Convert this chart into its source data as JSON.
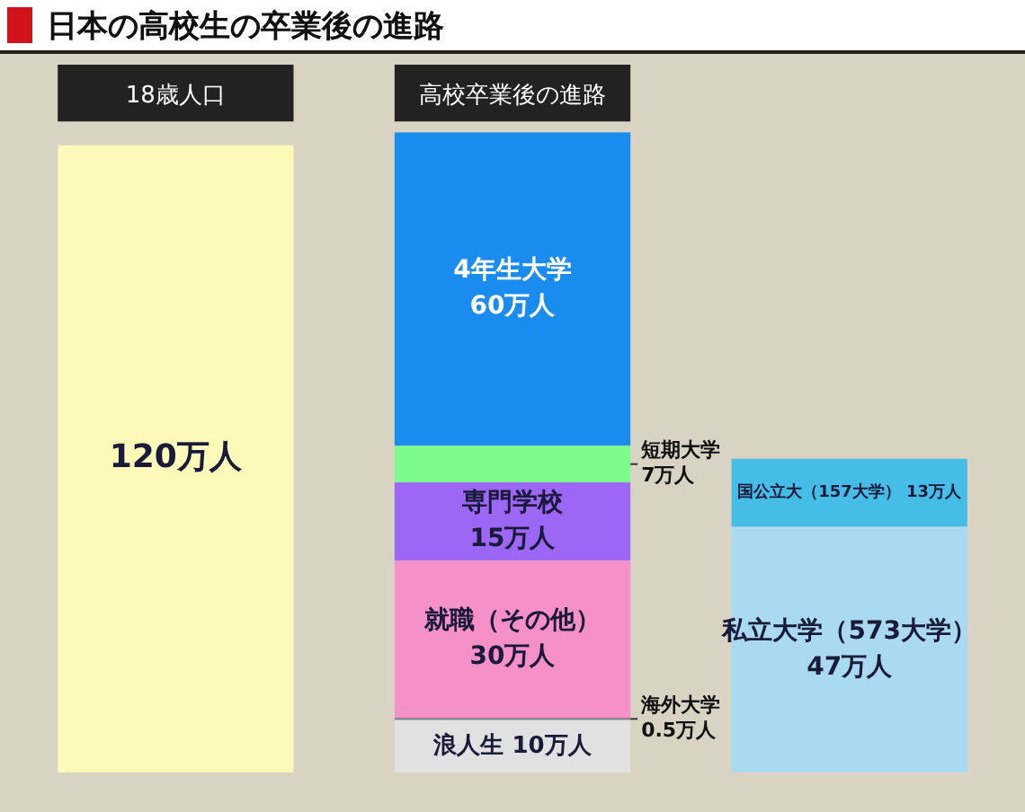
{
  "chart_data": {
    "type": "bar",
    "title": "日本の高校生の卒業後の進路",
    "categories": [
      "18歳人口",
      "高校卒業後の進路",
      null
    ],
    "stacked": true,
    "grid": false,
    "legend": false,
    "tick_labels": "x",
    "series": [
      {
        "color": "#fdf9b9",
        "values": [
          120,
          null,
          null
        ],
        "value_labels": [
          "120万人",
          null,
          null
        ]
      },
      {
        "name": "浪人生",
        "color": "#e1e1e1",
        "values": [
          null,
          10,
          null
        ],
        "value_labels": [
          null,
          "10万人",
          null
        ]
      },
      {
        "name": "海外大学",
        "color": "#8a8a8a",
        "values": [
          null,
          0.5,
          null
        ],
        "value_labels": [
          null,
          "0.5万人",
          null
        ]
      },
      {
        "name": "就職（その他）",
        "color": "#f591c8",
        "values": [
          null,
          30,
          null
        ],
        "value_labels": [
          null,
          "30万人",
          null
        ]
      },
      {
        "name": "専門学校",
        "color": "#9c67f5",
        "values": [
          null,
          15,
          null
        ],
        "value_labels": [
          null,
          "15万人",
          null
        ]
      },
      {
        "name": "短期大学",
        "color": "#7dfa8c",
        "values": [
          null,
          7,
          null
        ],
        "value_labels": [
          null,
          "7万人",
          null
        ]
      },
      {
        "name": "4年生大学",
        "color": "#1a8cf0",
        "values": [
          null,
          60,
          null
        ],
        "value_labels": [
          null,
          "60万人",
          null
        ]
      },
      {
        "name": "私立大学（573大学）",
        "color": "#a9daf1",
        "values": [
          null,
          null,
          47
        ],
        "value_labels": [
          null,
          null,
          "47万人"
        ]
      },
      {
        "name": "国公立大（157大学）",
        "color": "#46bde6",
        "values": [
          null,
          null,
          13
        ],
        "value_labels": [
          null,
          null,
          "13万人"
        ]
      }
    ]
  }
}
